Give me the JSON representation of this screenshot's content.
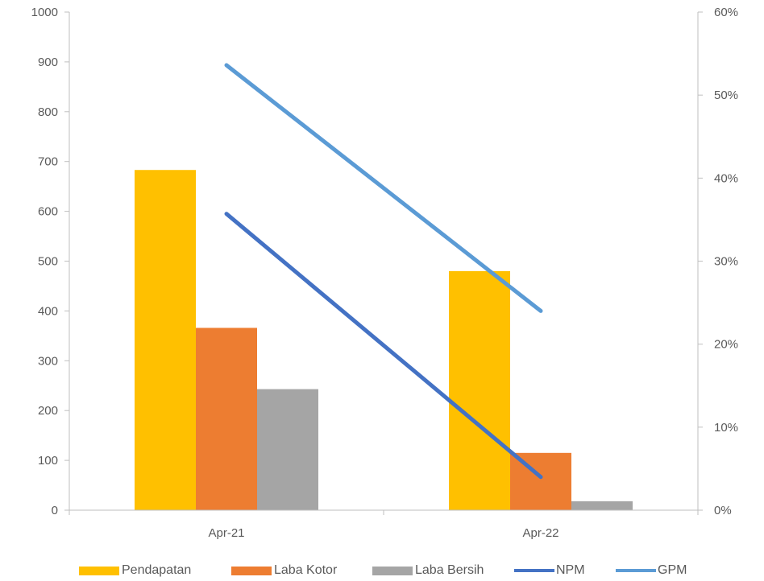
{
  "chart_data": {
    "type": "bar",
    "categories": [
      "Apr-21",
      "Apr-22"
    ],
    "left_axis": {
      "ylim": [
        0,
        1000
      ],
      "ticks": [
        "0",
        "100",
        "200",
        "300",
        "400",
        "500",
        "600",
        "700",
        "800",
        "900",
        "1000"
      ]
    },
    "right_axis": {
      "ylim": [
        0,
        0.6
      ],
      "ticks": [
        "0%",
        "10%",
        "20%",
        "30%",
        "40%",
        "50%",
        "60%"
      ]
    },
    "series": [
      {
        "name": "Pendapatan",
        "kind": "bar",
        "axis": "left",
        "color": "#FFC000",
        "values": [
          683,
          480
        ]
      },
      {
        "name": "Laba Kotor",
        "kind": "bar",
        "axis": "left",
        "color": "#ED7D31",
        "values": [
          366,
          115
        ]
      },
      {
        "name": "Laba Bersih",
        "kind": "bar",
        "axis": "left",
        "color": "#A5A5A5",
        "values": [
          243,
          18
        ]
      },
      {
        "name": "NPM",
        "kind": "line",
        "axis": "right",
        "color": "#4472C4",
        "values": [
          0.357,
          0.04
        ]
      },
      {
        "name": "GPM",
        "kind": "line",
        "axis": "right",
        "color": "#5B9BD5",
        "values": [
          0.536,
          0.24
        ]
      }
    ],
    "legend": "bottom",
    "grid": false
  }
}
